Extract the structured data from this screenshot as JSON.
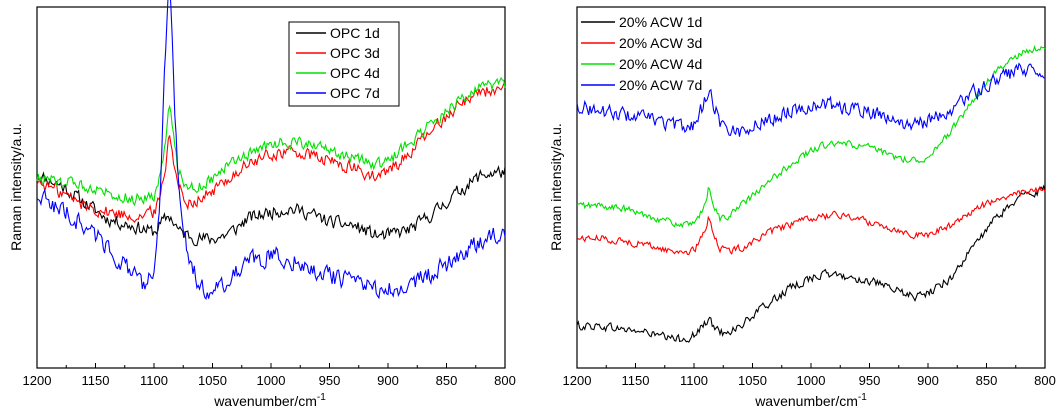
{
  "chart_data": [
    {
      "type": "line",
      "title": "",
      "xlabel": "wavenumber/cm",
      "xlabel_sup": "-1",
      "ylabel": "Raman intensity/a.u.",
      "xlim": [
        1200,
        800
      ],
      "ylim": [
        0,
        100
      ],
      "x_reversed": true,
      "y_ticks_shown": false,
      "grid": false,
      "legend_position": "top-center",
      "xticks": [
        1200,
        1150,
        1100,
        1050,
        1000,
        950,
        900,
        850,
        800
      ],
      "series": [
        {
          "name": "OPC 1d",
          "color": "#000000",
          "noise": 1.8,
          "points": [
            [
              1200,
              49
            ],
            [
              1180,
              46
            ],
            [
              1160,
              41
            ],
            [
              1140,
              36
            ],
            [
              1120,
              34
            ],
            [
              1110,
              33
            ],
            [
              1100,
              32
            ],
            [
              1095,
              34
            ],
            [
              1090,
              36
            ],
            [
              1087,
              37
            ],
            [
              1083,
              35
            ],
            [
              1078,
              32
            ],
            [
              1070,
              31
            ],
            [
              1060,
              30
            ],
            [
              1050,
              30
            ],
            [
              1040,
              31
            ],
            [
              1030,
              33
            ],
            [
              1020,
              36
            ],
            [
              1000,
              38
            ],
            [
              985,
              39
            ],
            [
              970,
              38
            ],
            [
              950,
              35
            ],
            [
              930,
              34
            ],
            [
              910,
              31
            ],
            [
              900,
              31
            ],
            [
              880,
              33
            ],
            [
              860,
              38
            ],
            [
              840,
              44
            ],
            [
              820,
              49
            ],
            [
              800,
              50
            ]
          ]
        },
        {
          "name": "OPC 3d",
          "color": "#ff0000",
          "noise": 1.8,
          "points": [
            [
              1200,
              47
            ],
            [
              1180,
              44
            ],
            [
              1160,
              40
            ],
            [
              1140,
              38
            ],
            [
              1120,
              37
            ],
            [
              1110,
              37
            ],
            [
              1100,
              38
            ],
            [
              1095,
              42
            ],
            [
              1090,
              52
            ],
            [
              1087,
              62
            ],
            [
              1084,
              56
            ],
            [
              1080,
              46
            ],
            [
              1075,
              43
            ],
            [
              1070,
              41
            ],
            [
              1060,
              42
            ],
            [
              1050,
              44
            ],
            [
              1040,
              47
            ],
            [
              1020,
              52
            ],
            [
              1000,
              55
            ],
            [
              985,
              56
            ],
            [
              970,
              55
            ],
            [
              950,
              53
            ],
            [
              930,
              51
            ],
            [
              910,
              48
            ],
            [
              900,
              50
            ],
            [
              880,
              56
            ],
            [
              860,
              63
            ],
            [
              840,
              70
            ],
            [
              820,
              74
            ],
            [
              800,
              74
            ]
          ]
        },
        {
          "name": "OPC 4d",
          "color": "#00e000",
          "noise": 1.6,
          "points": [
            [
              1200,
              48
            ],
            [
              1180,
              47
            ],
            [
              1160,
              46
            ],
            [
              1140,
              44
            ],
            [
              1120,
              42
            ],
            [
              1110,
              42
            ],
            [
              1100,
              43
            ],
            [
              1095,
              48
            ],
            [
              1090,
              60
            ],
            [
              1087,
              70
            ],
            [
              1084,
              62
            ],
            [
              1080,
              52
            ],
            [
              1075,
              47
            ],
            [
              1070,
              45
            ],
            [
              1060,
              46
            ],
            [
              1050,
              48
            ],
            [
              1040,
              51
            ],
            [
              1020,
              55
            ],
            [
              1000,
              58
            ],
            [
              985,
              59
            ],
            [
              970,
              58
            ],
            [
              950,
              56
            ],
            [
              930,
              54
            ],
            [
              910,
              52
            ],
            [
              900,
              53
            ],
            [
              880,
              59
            ],
            [
              860,
              65
            ],
            [
              840,
              71
            ],
            [
              820,
              75
            ],
            [
              800,
              76
            ]
          ]
        },
        {
          "name": "OPC 7d",
          "color": "#0000ff",
          "noise": 2.5,
          "points": [
            [
              1200,
              43
            ],
            [
              1180,
              39
            ],
            [
              1160,
              34
            ],
            [
              1140,
              28
            ],
            [
              1120,
              20
            ],
            [
              1110,
              16
            ],
            [
              1105,
              17
            ],
            [
              1100,
              22
            ],
            [
              1095,
              40
            ],
            [
              1092,
              70
            ],
            [
              1089,
              95
            ],
            [
              1087,
              106
            ],
            [
              1085,
              95
            ],
            [
              1082,
              65
            ],
            [
              1078,
              40
            ],
            [
              1070,
              24
            ],
            [
              1060,
              15
            ],
            [
              1050,
              15
            ],
            [
              1040,
              17
            ],
            [
              1030,
              20
            ],
            [
              1020,
              23
            ],
            [
              1000,
              25
            ],
            [
              985,
              24
            ],
            [
              970,
              22
            ],
            [
              950,
              19
            ],
            [
              930,
              17
            ],
            [
              910,
              15
            ],
            [
              900,
              15
            ],
            [
              880,
              17
            ],
            [
              860,
              20
            ],
            [
              840,
              25
            ],
            [
              820,
              30
            ],
            [
              800,
              33
            ]
          ]
        }
      ]
    },
    {
      "type": "line",
      "title": "",
      "xlabel": "wavenumber/cm",
      "xlabel_sup": "-1",
      "ylabel": "Raman intensity/a.u.",
      "xlim": [
        1200,
        800
      ],
      "ylim": [
        0,
        100
      ],
      "x_reversed": true,
      "y_ticks_shown": false,
      "grid": false,
      "legend_position": "top-left",
      "xticks": [
        1200,
        1150,
        1100,
        1050,
        1000,
        950,
        900,
        850,
        800
      ],
      "series": [
        {
          "name": "20% ACW 1d",
          "color": "#000000",
          "noise": 1.2,
          "points": [
            [
              1200,
              12
            ],
            [
              1180,
              12
            ],
            [
              1160,
              11
            ],
            [
              1140,
              10
            ],
            [
              1120,
              8
            ],
            [
              1110,
              8
            ],
            [
              1100,
              9
            ],
            [
              1090,
              13
            ],
            [
              1087,
              14
            ],
            [
              1082,
              11
            ],
            [
              1075,
              10
            ],
            [
              1060,
              12
            ],
            [
              1050,
              15
            ],
            [
              1040,
              18
            ],
            [
              1020,
              23
            ],
            [
              1000,
              27
            ],
            [
              985,
              28
            ],
            [
              970,
              27
            ],
            [
              950,
              26
            ],
            [
              930,
              23
            ],
            [
              910,
              21
            ],
            [
              900,
              22
            ],
            [
              880,
              27
            ],
            [
              860,
              37
            ],
            [
              840,
              46
            ],
            [
              820,
              52
            ],
            [
              800,
              54
            ]
          ]
        },
        {
          "name": "20% ACW 3d",
          "color": "#ff0000",
          "noise": 1.0,
          "points": [
            [
              1200,
              39
            ],
            [
              1180,
              39
            ],
            [
              1160,
              38
            ],
            [
              1140,
              37
            ],
            [
              1120,
              35
            ],
            [
              1110,
              35
            ],
            [
              1100,
              35
            ],
            [
              1092,
              40
            ],
            [
              1087,
              46
            ],
            [
              1083,
              40
            ],
            [
              1078,
              36
            ],
            [
              1070,
              35
            ],
            [
              1060,
              36
            ],
            [
              1040,
              40
            ],
            [
              1020,
              43
            ],
            [
              1000,
              45
            ],
            [
              985,
              46
            ],
            [
              970,
              46
            ],
            [
              950,
              44
            ],
            [
              930,
              42
            ],
            [
              910,
              40
            ],
            [
              900,
              40
            ],
            [
              880,
              43
            ],
            [
              860,
              48
            ],
            [
              840,
              51
            ],
            [
              820,
              53
            ],
            [
              800,
              54
            ]
          ]
        },
        {
          "name": "20% ACW 4d",
          "color": "#00e000",
          "noise": 1.0,
          "points": [
            [
              1200,
              49
            ],
            [
              1180,
              49
            ],
            [
              1160,
              48
            ],
            [
              1140,
              46
            ],
            [
              1120,
              44
            ],
            [
              1110,
              43
            ],
            [
              1100,
              43
            ],
            [
              1092,
              48
            ],
            [
              1087,
              55
            ],
            [
              1083,
              49
            ],
            [
              1078,
              45
            ],
            [
              1070,
              46
            ],
            [
              1060,
              49
            ],
            [
              1040,
              55
            ],
            [
              1020,
              61
            ],
            [
              1000,
              66
            ],
            [
              985,
              68
            ],
            [
              970,
              68
            ],
            [
              950,
              67
            ],
            [
              930,
              64
            ],
            [
              910,
              63
            ],
            [
              900,
              64
            ],
            [
              880,
              72
            ],
            [
              860,
              82
            ],
            [
              840,
              91
            ],
            [
              820,
              96
            ],
            [
              800,
              98
            ]
          ]
        },
        {
          "name": "20% ACW 7d",
          "color": "#0000ff",
          "noise": 2.0,
          "points": [
            [
              1200,
              80
            ],
            [
              1180,
              78
            ],
            [
              1160,
              77
            ],
            [
              1140,
              76
            ],
            [
              1120,
              74
            ],
            [
              1110,
              73
            ],
            [
              1100,
              74
            ],
            [
              1092,
              80
            ],
            [
              1087,
              86
            ],
            [
              1083,
              80
            ],
            [
              1078,
              75
            ],
            [
              1070,
              72
            ],
            [
              1060,
              72
            ],
            [
              1040,
              75
            ],
            [
              1020,
              78
            ],
            [
              1000,
              80
            ],
            [
              985,
              80
            ],
            [
              970,
              79
            ],
            [
              950,
              78
            ],
            [
              930,
              75
            ],
            [
              910,
              74
            ],
            [
              900,
              75
            ],
            [
              880,
              79
            ],
            [
              860,
              84
            ],
            [
              840,
              88
            ],
            [
              820,
              91
            ],
            [
              800,
              90
            ]
          ]
        }
      ]
    }
  ]
}
